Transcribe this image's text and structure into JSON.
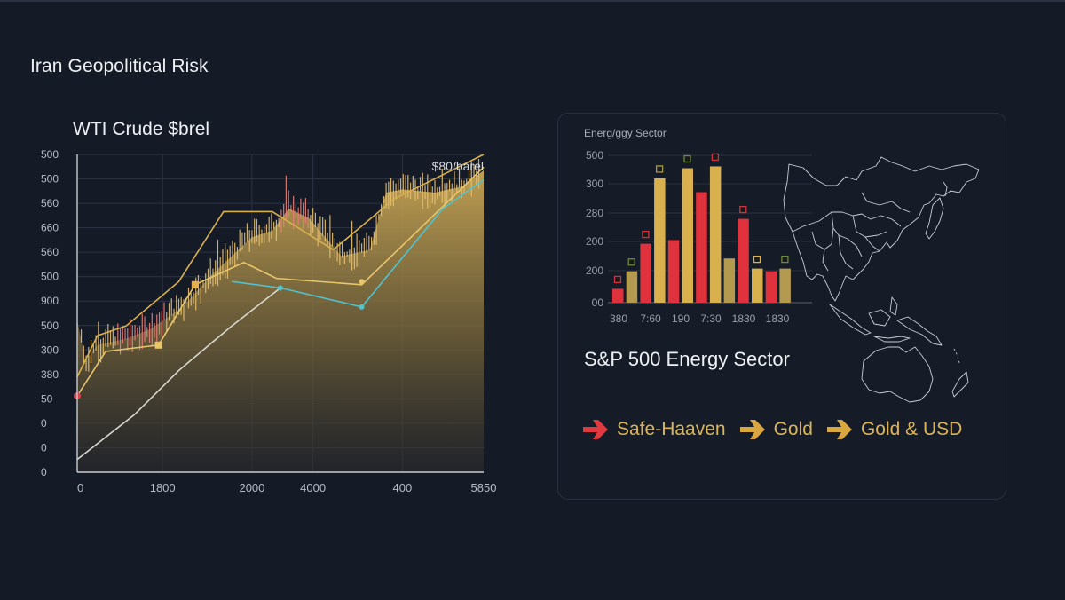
{
  "header": {
    "title": "Iran Geopolitical Risk"
  },
  "line_panel": {
    "title": "WTI Crude $brel",
    "annotation": "$80/barel"
  },
  "bar_panel": {
    "title": "Energ/ggy Sector",
    "subtitle": "S&P 500 Energy Sector"
  },
  "flow": [
    {
      "label": "Safe-Haaven",
      "arrow_color": "#e03a3e",
      "text_color": "#d9b45a"
    },
    {
      "label": "Gold",
      "arrow_color": "#d9a640",
      "text_color": "#d9b45a"
    },
    {
      "label": "Gold & USD",
      "arrow_color": "#d9a640",
      "text_color": "#d9b45a"
    }
  ],
  "colors": {
    "background": "#141a26",
    "gold": "#d9b04e",
    "olive": "#b39a4f",
    "red": "#e0323c",
    "teal": "#4fc3cf",
    "grid": "#2c3444",
    "axis_text": "#b8bec8"
  },
  "chart_data": [
    {
      "type": "line",
      "title": "WTI Crude $brel",
      "annotation": "$80/barel",
      "xlabel": "",
      "ylabel": "",
      "x_tick_labels": [
        "0",
        "1800",
        "2000",
        "4000",
        "400",
        "5850"
      ],
      "y_tick_labels": [
        "500",
        "500",
        "560",
        "660",
        "560",
        "500",
        "900",
        "500",
        "300",
        "380",
        "50",
        "0",
        "0",
        "0"
      ],
      "grid": true,
      "series": [
        {
          "name": "Gold upper line",
          "color": "#d9b04e",
          "points": [
            [
              0,
              0.3
            ],
            [
              0.05,
              0.43
            ],
            [
              0.12,
              0.46
            ],
            [
              0.25,
              0.6
            ],
            [
              0.36,
              0.82
            ],
            [
              0.48,
              0.82
            ],
            [
              0.63,
              0.7
            ],
            [
              0.78,
              0.86
            ],
            [
              1.0,
              1.0
            ]
          ]
        },
        {
          "name": "Gold lower line",
          "color": "#e8c66a",
          "points": [
            [
              0,
              0.24
            ],
            [
              0.07,
              0.38
            ],
            [
              0.2,
              0.4
            ],
            [
              0.29,
              0.59
            ],
            [
              0.41,
              0.66
            ],
            [
              0.49,
              0.61
            ],
            [
              0.7,
              0.59
            ],
            [
              1.0,
              0.96
            ]
          ]
        },
        {
          "name": "Teal line",
          "color": "#4fc3cf",
          "points": [
            [
              0.38,
              0.6
            ],
            [
              0.5,
              0.58
            ],
            [
              0.7,
              0.52
            ],
            [
              0.9,
              0.83
            ],
            [
              1.0,
              0.92
            ]
          ]
        },
        {
          "name": "White base line",
          "color": "#d8d8d0",
          "points": [
            [
              0,
              0.04
            ],
            [
              0.08,
              0.12
            ],
            [
              0.14,
              0.18
            ],
            [
              0.25,
              0.32
            ],
            [
              0.38,
              0.46
            ],
            [
              0.5,
              0.58
            ]
          ]
        }
      ]
    },
    {
      "type": "bar",
      "title": "Energ/ggy Sector",
      "y_tick_labels": [
        "00",
        "200",
        "200",
        "280",
        "300",
        "500"
      ],
      "x_tick_labels": [
        "380",
        "7:60",
        "190",
        "7:30",
        "1830",
        "1830"
      ],
      "grid": true,
      "bars": [
        {
          "color": "red",
          "value": 15,
          "marker": "red"
        },
        {
          "color": "olive",
          "value": 34,
          "marker": "green"
        },
        {
          "color": "red",
          "value": 64,
          "marker": "red"
        },
        {
          "color": "gold",
          "value": 135,
          "marker": "olive"
        },
        {
          "color": "red",
          "value": 68,
          "marker": null
        },
        {
          "color": "gold",
          "value": 146,
          "marker": "green"
        },
        {
          "color": "red",
          "value": 120,
          "marker": null
        },
        {
          "color": "gold",
          "value": 148,
          "marker": "red"
        },
        {
          "color": "olive",
          "value": 48,
          "marker": null
        },
        {
          "color": "red",
          "value": 91,
          "marker": "red"
        },
        {
          "color": "gold",
          "value": 37,
          "marker": "gold"
        },
        {
          "color": "red",
          "value": 34,
          "marker": null
        },
        {
          "color": "olive",
          "value": 37,
          "marker": "green"
        }
      ]
    }
  ]
}
